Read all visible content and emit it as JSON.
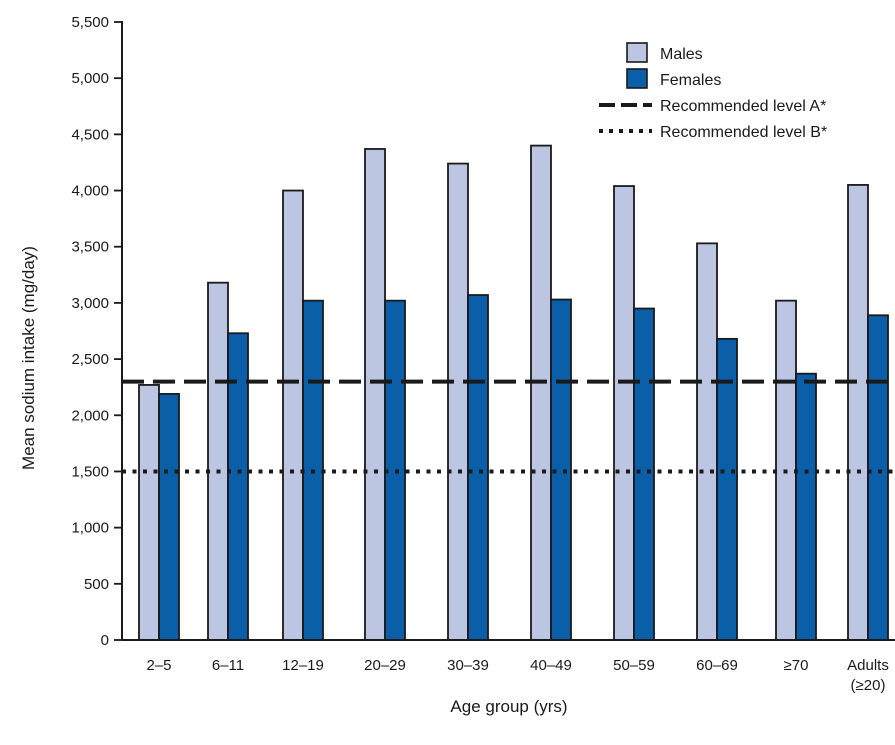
{
  "chart_data": {
    "type": "bar",
    "categories": [
      "2–5",
      "6–11",
      "12–19",
      "20–29",
      "30–39",
      "40–49",
      "50–59",
      "60–69",
      "≥70",
      "Adults\n(≥20)"
    ],
    "series": [
      {
        "name": "Males",
        "color": "#bcc6e3",
        "values": [
          2270,
          3180,
          4000,
          4370,
          4240,
          4400,
          4040,
          3530,
          3020,
          4050
        ]
      },
      {
        "name": "Females",
        "color": "#0a5fa8",
        "values": [
          2190,
          2730,
          3020,
          3020,
          3070,
          3030,
          2950,
          2680,
          2370,
          2890
        ]
      }
    ],
    "reference_lines": [
      {
        "name": "Recommended level A*",
        "value": 2300,
        "style": "dashed"
      },
      {
        "name": "Recommended level B*",
        "value": 1500,
        "style": "dotted"
      }
    ],
    "xlabel": "Age group (yrs)",
    "ylabel": "Mean sodium intake (mg/day)",
    "ylim": [
      0,
      5500
    ],
    "yticks": [
      0,
      500,
      1000,
      1500,
      2000,
      2500,
      3000,
      3500,
      4000,
      4500,
      5000,
      5500
    ],
    "ytick_labels": [
      "0",
      "500",
      "1,000",
      "1,500",
      "2,000",
      "2,500",
      "3,000",
      "3,500",
      "4,000",
      "4,500",
      "5,000",
      "5,500"
    ],
    "grid": false,
    "legend_position": "top-right"
  }
}
